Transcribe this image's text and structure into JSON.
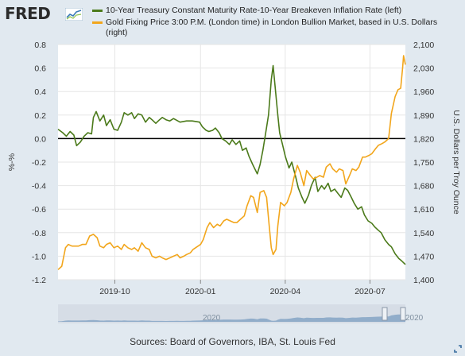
{
  "header": {
    "logo_text": "FRED"
  },
  "legend": [
    {
      "label": "10-Year Treasury Constant Maturity Rate-10-Year Breakeven Inflation Rate (left)",
      "color": "#4b7a1a"
    },
    {
      "label": "Gold Fixing Price 3:00 P.M. (London time) in London Bullion Market, based in U.S. Dollars (right)",
      "color": "#f2a61c"
    }
  ],
  "footer": {
    "sources": "Sources: Board of Governors, IBA, St. Louis Fed"
  },
  "navigator": {
    "year_label": "2020"
  },
  "chart_data": {
    "type": "line",
    "x_ticks": [
      "2019-10",
      "2020-01",
      "2020-04",
      "2020-07"
    ],
    "x_range": [
      "2019-08-01",
      "2020-08-08"
    ],
    "y_left": {
      "label": "%-%",
      "range": [
        -1.2,
        0.8
      ],
      "ticks": [
        "0.8",
        "0.6",
        "0.4",
        "0.2",
        "0.0",
        "-0.2",
        "-0.4",
        "-0.6",
        "-0.8",
        "-1.0",
        "-1.2"
      ]
    },
    "y_right": {
      "label": "U.S. Dollars per Troy Ounce",
      "range": [
        1400,
        2100
      ],
      "ticks": [
        "2,100",
        "2,030",
        "1,960",
        "1,890",
        "1,820",
        "1,750",
        "1,680",
        "1,610",
        "1,540",
        "1,470",
        "1,400"
      ]
    },
    "grid": true,
    "legend_position": "top",
    "series": [
      {
        "name": "10-Year Treasury Constant Maturity Rate-10-Year Breakeven Inflation Rate (left)",
        "axis": "left",
        "color": "#4b7a1a",
        "points": [
          [
            "2019-08-01",
            0.08
          ],
          [
            "2019-08-06",
            0.05
          ],
          [
            "2019-08-10",
            0.02
          ],
          [
            "2019-08-14",
            0.06
          ],
          [
            "2019-08-18",
            0.03
          ],
          [
            "2019-08-21",
            -0.06
          ],
          [
            "2019-08-25",
            -0.03
          ],
          [
            "2019-08-29",
            0.02
          ],
          [
            "2019-09-02",
            0.05
          ],
          [
            "2019-09-06",
            0.04
          ],
          [
            "2019-09-08",
            0.18
          ],
          [
            "2019-09-11",
            0.23
          ],
          [
            "2019-09-15",
            0.15
          ],
          [
            "2019-09-19",
            0.2
          ],
          [
            "2019-09-22",
            0.11
          ],
          [
            "2019-09-26",
            0.16
          ],
          [
            "2019-09-30",
            0.08
          ],
          [
            "2019-10-04",
            0.07
          ],
          [
            "2019-10-08",
            0.14
          ],
          [
            "2019-10-11",
            0.22
          ],
          [
            "2019-10-15",
            0.2
          ],
          [
            "2019-10-19",
            0.22
          ],
          [
            "2019-10-22",
            0.17
          ],
          [
            "2019-10-26",
            0.21
          ],
          [
            "2019-10-30",
            0.2
          ],
          [
            "2019-11-03",
            0.14
          ],
          [
            "2019-11-07",
            0.18
          ],
          [
            "2019-11-10",
            0.16
          ],
          [
            "2019-11-14",
            0.13
          ],
          [
            "2019-11-18",
            0.16
          ],
          [
            "2019-11-21",
            0.18
          ],
          [
            "2019-11-25",
            0.16
          ],
          [
            "2019-11-29",
            0.15
          ],
          [
            "2019-12-03",
            0.17
          ],
          [
            "2019-12-10",
            0.14
          ],
          [
            "2019-12-17",
            0.15
          ],
          [
            "2019-12-23",
            0.15
          ],
          [
            "2019-12-31",
            0.14
          ],
          [
            "2020-01-03",
            0.1
          ],
          [
            "2020-01-07",
            0.07
          ],
          [
            "2020-01-10",
            0.06
          ],
          [
            "2020-01-14",
            0.07
          ],
          [
            "2020-01-17",
            0.09
          ],
          [
            "2020-01-21",
            0.05
          ],
          [
            "2020-01-24",
            0.0
          ],
          [
            "2020-01-28",
            -0.02
          ],
          [
            "2020-02-01",
            -0.05
          ],
          [
            "2020-02-04",
            -0.01
          ],
          [
            "2020-02-08",
            -0.05
          ],
          [
            "2020-02-12",
            -0.02
          ],
          [
            "2020-02-15",
            -0.1
          ],
          [
            "2020-02-19",
            -0.08
          ],
          [
            "2020-02-22",
            -0.15
          ],
          [
            "2020-02-26",
            -0.22
          ],
          [
            "2020-03-02",
            -0.3
          ],
          [
            "2020-03-05",
            -0.22
          ],
          [
            "2020-03-08",
            -0.1
          ],
          [
            "2020-03-11",
            0.05
          ],
          [
            "2020-03-14",
            0.2
          ],
          [
            "2020-03-17",
            0.5
          ],
          [
            "2020-03-19",
            0.62
          ],
          [
            "2020-03-21",
            0.45
          ],
          [
            "2020-03-24",
            0.2
          ],
          [
            "2020-03-26",
            0.05
          ],
          [
            "2020-03-29",
            -0.05
          ],
          [
            "2020-04-01",
            -0.15
          ],
          [
            "2020-04-05",
            -0.25
          ],
          [
            "2020-04-08",
            -0.2
          ],
          [
            "2020-04-12",
            -0.32
          ],
          [
            "2020-04-15",
            -0.42
          ],
          [
            "2020-04-19",
            -0.5
          ],
          [
            "2020-04-22",
            -0.55
          ],
          [
            "2020-04-26",
            -0.48
          ],
          [
            "2020-04-29",
            -0.4
          ],
          [
            "2020-05-03",
            -0.33
          ],
          [
            "2020-05-06",
            -0.45
          ],
          [
            "2020-05-10",
            -0.4
          ],
          [
            "2020-05-13",
            -0.43
          ],
          [
            "2020-05-17",
            -0.38
          ],
          [
            "2020-05-20",
            -0.45
          ],
          [
            "2020-05-24",
            -0.43
          ],
          [
            "2020-05-28",
            -0.47
          ],
          [
            "2020-05-31",
            -0.5
          ],
          [
            "2020-06-04",
            -0.42
          ],
          [
            "2020-06-07",
            -0.44
          ],
          [
            "2020-06-11",
            -0.5
          ],
          [
            "2020-06-14",
            -0.55
          ],
          [
            "2020-06-18",
            -0.6
          ],
          [
            "2020-06-22",
            -0.58
          ],
          [
            "2020-06-25",
            -0.65
          ],
          [
            "2020-06-29",
            -0.7
          ],
          [
            "2020-07-03",
            -0.72
          ],
          [
            "2020-07-06",
            -0.75
          ],
          [
            "2020-07-10",
            -0.78
          ],
          [
            "2020-07-13",
            -0.8
          ],
          [
            "2020-07-17",
            -0.86
          ],
          [
            "2020-07-21",
            -0.9
          ],
          [
            "2020-07-24",
            -0.92
          ],
          [
            "2020-07-28",
            -0.98
          ],
          [
            "2020-08-01",
            -1.02
          ],
          [
            "2020-08-04",
            -1.04
          ],
          [
            "2020-08-08",
            -1.07
          ]
        ]
      },
      {
        "name": "Gold Fixing Price 3:00 P.M. (London time) in London Bullion Market, based in U.S. Dollars (right)",
        "axis": "right",
        "color": "#f2a61c",
        "points": [
          [
            "2019-08-01",
            1430
          ],
          [
            "2019-08-05",
            1440
          ],
          [
            "2019-08-09",
            1495
          ],
          [
            "2019-08-12",
            1505
          ],
          [
            "2019-08-16",
            1500
          ],
          [
            "2019-08-20",
            1500
          ],
          [
            "2019-08-23",
            1500
          ],
          [
            "2019-08-27",
            1505
          ],
          [
            "2019-08-31",
            1505
          ],
          [
            "2019-09-04",
            1530
          ],
          [
            "2019-09-08",
            1535
          ],
          [
            "2019-09-12",
            1525
          ],
          [
            "2019-09-15",
            1500
          ],
          [
            "2019-09-19",
            1495
          ],
          [
            "2019-09-22",
            1505
          ],
          [
            "2019-09-26",
            1510
          ],
          [
            "2019-09-30",
            1495
          ],
          [
            "2019-10-04",
            1500
          ],
          [
            "2019-10-08",
            1490
          ],
          [
            "2019-10-11",
            1505
          ],
          [
            "2019-10-15",
            1495
          ],
          [
            "2019-10-19",
            1490
          ],
          [
            "2019-10-22",
            1495
          ],
          [
            "2019-10-26",
            1485
          ],
          [
            "2019-10-30",
            1510
          ],
          [
            "2019-11-03",
            1495
          ],
          [
            "2019-11-07",
            1490
          ],
          [
            "2019-11-10",
            1470
          ],
          [
            "2019-11-14",
            1465
          ],
          [
            "2019-11-18",
            1470
          ],
          [
            "2019-11-21",
            1465
          ],
          [
            "2019-11-25",
            1460
          ],
          [
            "2019-11-29",
            1465
          ],
          [
            "2019-12-03",
            1470
          ],
          [
            "2019-12-07",
            1475
          ],
          [
            "2019-12-10",
            1465
          ],
          [
            "2019-12-14",
            1470
          ],
          [
            "2019-12-17",
            1475
          ],
          [
            "2019-12-21",
            1480
          ],
          [
            "2019-12-24",
            1490
          ],
          [
            "2020-01-01",
            1505
          ],
          [
            "2020-01-04",
            1520
          ],
          [
            "2020-01-08",
            1555
          ],
          [
            "2020-01-11",
            1570
          ],
          [
            "2020-01-15",
            1555
          ],
          [
            "2020-01-19",
            1565
          ],
          [
            "2020-01-22",
            1560
          ],
          [
            "2020-01-26",
            1575
          ],
          [
            "2020-01-29",
            1580
          ],
          [
            "2020-02-02",
            1575
          ],
          [
            "2020-02-06",
            1570
          ],
          [
            "2020-02-09",
            1570
          ],
          [
            "2020-02-13",
            1580
          ],
          [
            "2020-02-17",
            1590
          ],
          [
            "2020-02-20",
            1620
          ],
          [
            "2020-02-24",
            1650
          ],
          [
            "2020-02-27",
            1645
          ],
          [
            "2020-03-02",
            1600
          ],
          [
            "2020-03-05",
            1660
          ],
          [
            "2020-03-09",
            1665
          ],
          [
            "2020-03-12",
            1645
          ],
          [
            "2020-03-15",
            1555
          ],
          [
            "2020-03-17",
            1495
          ],
          [
            "2020-03-19",
            1475
          ],
          [
            "2020-03-22",
            1490
          ],
          [
            "2020-03-24",
            1560
          ],
          [
            "2020-03-27",
            1630
          ],
          [
            "2020-03-31",
            1620
          ],
          [
            "2020-04-03",
            1630
          ],
          [
            "2020-04-07",
            1660
          ],
          [
            "2020-04-10",
            1700
          ],
          [
            "2020-04-14",
            1740
          ],
          [
            "2020-04-17",
            1720
          ],
          [
            "2020-04-21",
            1680
          ],
          [
            "2020-04-24",
            1725
          ],
          [
            "2020-04-28",
            1710
          ],
          [
            "2020-05-01",
            1700
          ],
          [
            "2020-05-05",
            1705
          ],
          [
            "2020-05-08",
            1710
          ],
          [
            "2020-05-12",
            1705
          ],
          [
            "2020-05-15",
            1735
          ],
          [
            "2020-05-19",
            1745
          ],
          [
            "2020-05-22",
            1730
          ],
          [
            "2020-05-26",
            1720
          ],
          [
            "2020-05-29",
            1730
          ],
          [
            "2020-06-02",
            1725
          ],
          [
            "2020-06-05",
            1685
          ],
          [
            "2020-06-09",
            1710
          ],
          [
            "2020-06-12",
            1730
          ],
          [
            "2020-06-16",
            1725
          ],
          [
            "2020-06-19",
            1735
          ],
          [
            "2020-06-23",
            1765
          ],
          [
            "2020-06-26",
            1765
          ],
          [
            "2020-06-30",
            1770
          ],
          [
            "2020-07-03",
            1775
          ],
          [
            "2020-07-07",
            1790
          ],
          [
            "2020-07-10",
            1800
          ],
          [
            "2020-07-14",
            1805
          ],
          [
            "2020-07-17",
            1810
          ],
          [
            "2020-07-21",
            1820
          ],
          [
            "2020-07-24",
            1895
          ],
          [
            "2020-07-28",
            1945
          ],
          [
            "2020-07-31",
            1965
          ],
          [
            "2020-08-03",
            1970
          ],
          [
            "2020-08-05",
            2030
          ],
          [
            "2020-08-06",
            2067
          ],
          [
            "2020-08-08",
            2040
          ]
        ]
      }
    ]
  }
}
